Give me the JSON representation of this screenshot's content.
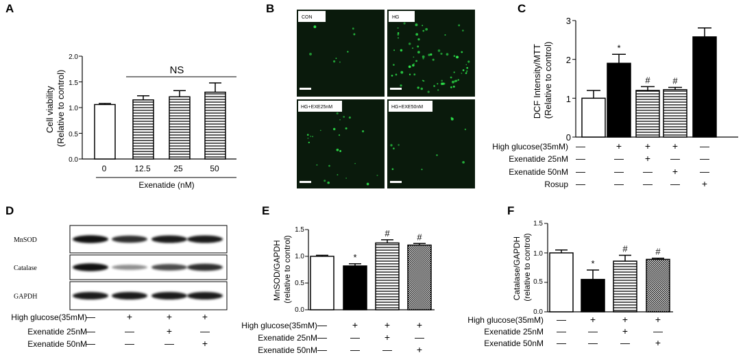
{
  "panel_labels": {
    "a": "A",
    "b": "B",
    "c": "C",
    "d": "D",
    "e": "E",
    "f": "F"
  },
  "colors": {
    "black": "#000000",
    "white": "#ffffff",
    "micro_bg": "#0a1a0c",
    "cell": "#2ee84c"
  },
  "panel_b": {
    "images": [
      {
        "label": "CON",
        "cells": 8
      },
      {
        "label": "HG",
        "cells": 75
      },
      {
        "label": "HG+EXE25nM",
        "cells": 25
      },
      {
        "label": "HG+EXE50nM",
        "cells": 10
      }
    ]
  },
  "panel_d": {
    "rows": [
      {
        "label": "MnSOD",
        "intensity": [
          0.9,
          0.75,
          0.85,
          0.85
        ]
      },
      {
        "label": "Catalase",
        "intensity": [
          0.9,
          0.25,
          0.6,
          0.75
        ]
      },
      {
        "label": "GAPDH",
        "intensity": [
          0.85,
          0.85,
          0.85,
          0.85
        ]
      }
    ],
    "treatments": [
      {
        "label": "High glucose(35mM)",
        "marks": [
          "—",
          "+",
          "+",
          "+"
        ]
      },
      {
        "label": "Exenatide 25nM",
        "marks": [
          "—",
          "—",
          "+",
          "—"
        ]
      },
      {
        "label": "Exenatide 50nM",
        "marks": [
          "—",
          "—",
          "—",
          "+"
        ]
      }
    ]
  },
  "chart_data": [
    {
      "panel": "A",
      "type": "bar",
      "categories": [
        "0",
        "12.5",
        "25",
        "50"
      ],
      "values": [
        1.06,
        1.15,
        1.21,
        1.3
      ],
      "errors": [
        0.02,
        0.08,
        0.12,
        0.18
      ],
      "fill": [
        "white",
        "hlines",
        "hlines",
        "hlines"
      ],
      "ylabel": "Cell viability\n(Relative to control)",
      "xlabel": "Exenatide (nM)",
      "ylim": [
        0,
        2.0
      ],
      "yticks": [
        "0.0",
        "0.5",
        "1.0",
        "1.5",
        "2.0"
      ],
      "annotation": "NS"
    },
    {
      "panel": "C",
      "type": "bar",
      "values": [
        1.0,
        1.9,
        1.2,
        1.22,
        2.58
      ],
      "errors": [
        0.2,
        0.23,
        0.1,
        0.06,
        0.23
      ],
      "fill": [
        "white",
        "black",
        "hlines",
        "hlines",
        "black"
      ],
      "significance": [
        "",
        "*",
        "#",
        "#",
        ""
      ],
      "ylabel": "DCF Intensity/MTT\n(Relative to control)",
      "ylim": [
        0,
        3
      ],
      "yticks": [
        "0",
        "1",
        "2",
        "3"
      ],
      "treatments": [
        {
          "label": "High glucose(35mM)",
          "marks": [
            "—",
            "+",
            "+",
            "+",
            "—"
          ]
        },
        {
          "label": "Exenatide 25nM",
          "marks": [
            "—",
            "—",
            "+",
            "—",
            "—"
          ]
        },
        {
          "label": "Exenatide 50nM",
          "marks": [
            "—",
            "—",
            "—",
            "+",
            "—"
          ]
        },
        {
          "label": "Rosup",
          "marks": [
            "—",
            "—",
            "—",
            "—",
            "+"
          ]
        }
      ]
    },
    {
      "panel": "E",
      "type": "bar",
      "values": [
        1.0,
        0.82,
        1.25,
        1.21
      ],
      "errors": [
        0.02,
        0.04,
        0.06,
        0.03
      ],
      "fill": [
        "white",
        "black",
        "hlines",
        "checker"
      ],
      "significance": [
        "",
        "*",
        "#",
        "#"
      ],
      "ylabel": "MnSOD/GAPDH\n(relative to control)",
      "ylim": [
        0,
        1.5
      ],
      "yticks": [
        "0.0",
        "0.5",
        "1.0",
        "1.5"
      ],
      "treatments": [
        {
          "label": "High glucose(35mM)",
          "marks": [
            "—",
            "+",
            "+",
            "+"
          ]
        },
        {
          "label": "Exenatide 25nM",
          "marks": [
            "—",
            "—",
            "+",
            "—"
          ]
        },
        {
          "label": "Exenatide 50nM",
          "marks": [
            "—",
            "—",
            "—",
            "+"
          ]
        }
      ]
    },
    {
      "panel": "F",
      "type": "bar",
      "values": [
        1.0,
        0.55,
        0.86,
        0.89
      ],
      "errors": [
        0.05,
        0.16,
        0.1,
        0.02
      ],
      "fill": [
        "white",
        "black",
        "hlines",
        "checker"
      ],
      "significance": [
        "",
        "*",
        "#",
        "#"
      ],
      "ylabel": "Catalase/GAPDH\n(relative to control)",
      "ylim": [
        0,
        1.5
      ],
      "yticks": [
        "0.0",
        "0.5",
        "1.0",
        "1.5"
      ],
      "treatments": [
        {
          "label": "High glucose(35mM)",
          "marks": [
            "—",
            "+",
            "+",
            "+"
          ]
        },
        {
          "label": "Exenatide 25nM",
          "marks": [
            "—",
            "—",
            "+",
            "—"
          ]
        },
        {
          "label": "Exenatide 50nM",
          "marks": [
            "—",
            "—",
            "—",
            "+"
          ]
        }
      ]
    }
  ]
}
